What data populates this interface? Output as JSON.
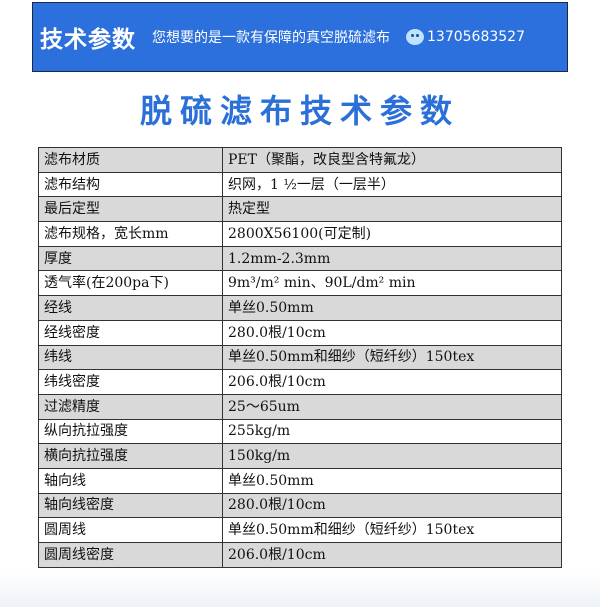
{
  "banner": {
    "title": "技术参数",
    "slogan": "您想要的是一款有保障的真空脱硫滤布",
    "phone_icon": "mascot-icon",
    "phone": "13705683527",
    "color": "#2b70dc"
  },
  "headline": "脱硫滤布技术参数",
  "specs": [
    {
      "k": "滤布材质",
      "v": "PET（聚酯，改良型含特氟龙）"
    },
    {
      "k": "滤布结构",
      "v": "织网，1 ½一层（一层半）"
    },
    {
      "k": "最后定型",
      "v": "热定型"
    },
    {
      "k": "滤布规格，宽长mm",
      "v": "2800X56100(可定制)"
    },
    {
      "k": "厚度",
      "v": "1.2mm-2.3mm"
    },
    {
      "k": "透气率(在200pa下)",
      "v": "9m³/m² min、90L/dm² min"
    },
    {
      "k": "经线",
      "v": "单丝0.50mm"
    },
    {
      "k": "经线密度",
      "v": "280.0根/10cm"
    },
    {
      "k": "纬线",
      "v": "单丝0.50mm和细纱（短纤纱）150tex"
    },
    {
      "k": "纬线密度",
      "v": "206.0根/10cm"
    },
    {
      "k": "过滤精度",
      "v": "25～65um"
    },
    {
      "k": "纵向抗拉强度",
      "v": "255kg/m"
    },
    {
      "k": "横向抗拉强度",
      "v": "150kg/m"
    },
    {
      "k": "轴向线",
      "v": "单丝0.50mm"
    },
    {
      "k": "轴向线密度",
      "v": "280.0根/10cm"
    },
    {
      "k": "圆周线",
      "v": "单丝0.50mm和细纱（短纤纱）150tex"
    },
    {
      "k": "圆周线密度",
      "v": "206.0根/10cm"
    }
  ]
}
